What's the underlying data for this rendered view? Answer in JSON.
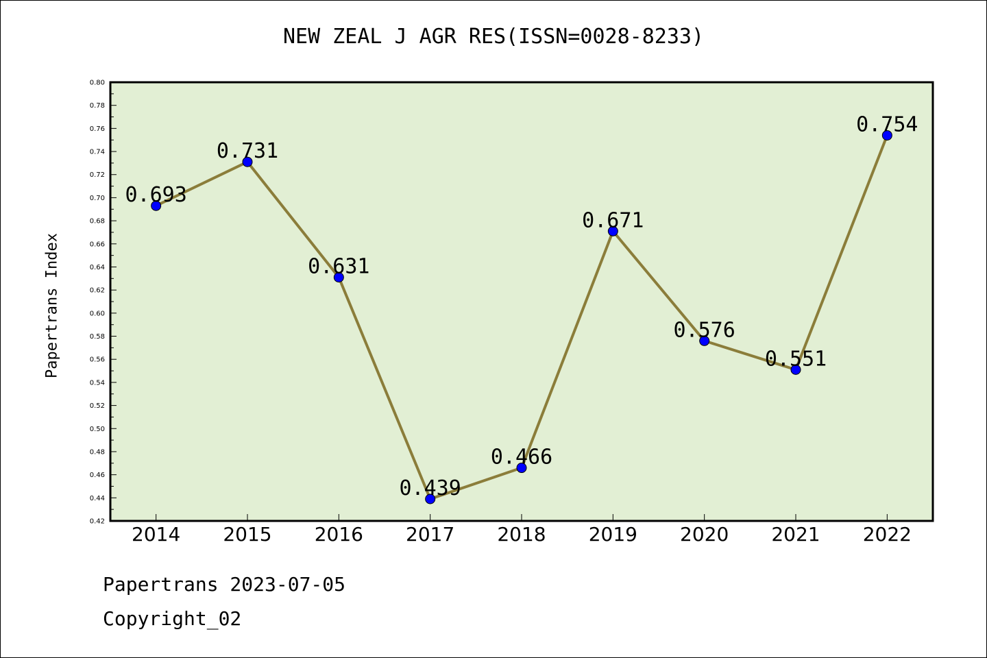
{
  "title": "NEW ZEAL J AGR RES(ISSN=0028-8233)",
  "footer": {
    "line1": "Papertrans 2023-07-05",
    "line2": "Copyright_02"
  },
  "chart_data": {
    "type": "line",
    "title": "NEW ZEAL J AGR RES(ISSN=0028-8233)",
    "xlabel": "",
    "ylabel": "Papertrans Index",
    "categories": [
      "2014",
      "2015",
      "2016",
      "2017",
      "2018",
      "2019",
      "2020",
      "2021",
      "2022"
    ],
    "series": [
      {
        "values": [
          0.693,
          0.731,
          0.631,
          0.439,
          0.466,
          0.671,
          0.576,
          0.551,
          0.754
        ],
        "labels": [
          "0.693",
          "0.731",
          "0.631",
          "0.439",
          "0.466",
          "0.671",
          "0.576",
          "0.551",
          "0.754"
        ]
      }
    ],
    "ylim": [
      0.42,
      0.8
    ],
    "yticks": [
      "0.42",
      "0.44",
      "0.46",
      "0.48",
      "0.50",
      "0.52",
      "0.54",
      "0.56",
      "0.58",
      "0.60",
      "0.62",
      "0.64",
      "0.66",
      "0.68",
      "0.70",
      "0.72",
      "0.74",
      "0.76",
      "0.78",
      "0.80"
    ],
    "grid": false,
    "colors": {
      "plot_background": "#e2efd4",
      "line": "#8b7d3a",
      "marker": "#0000ff"
    }
  }
}
